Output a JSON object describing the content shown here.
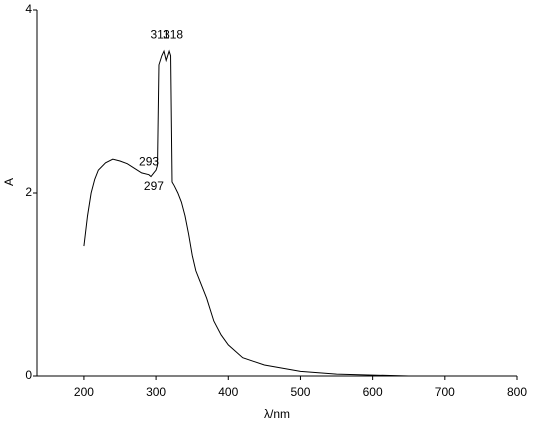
{
  "chart_data": {
    "type": "line",
    "x_label": "λ/nm",
    "y_label": "A",
    "x": [
      200,
      205,
      210,
      215,
      220,
      230,
      240,
      250,
      260,
      270,
      280,
      290,
      293,
      297,
      300,
      302,
      304,
      308,
      311,
      314,
      318,
      320,
      322,
      325,
      330,
      335,
      340,
      345,
      350,
      355,
      360,
      370,
      380,
      390,
      400,
      420,
      450,
      500,
      550,
      600,
      650
    ],
    "series": [
      {
        "name": "A",
        "color": "#000000",
        "values": [
          1.42,
          1.75,
          2.0,
          2.15,
          2.25,
          2.33,
          2.37,
          2.35,
          2.32,
          2.27,
          2.22,
          2.2,
          2.18,
          2.22,
          2.25,
          2.3,
          3.4,
          3.5,
          3.55,
          3.45,
          3.55,
          3.5,
          2.12,
          2.08,
          2.0,
          1.9,
          1.75,
          1.55,
          1.32,
          1.15,
          1.05,
          0.85,
          0.6,
          0.45,
          0.34,
          0.2,
          0.12,
          0.05,
          0.02,
          0.01,
          0.0
        ]
      }
    ],
    "annotations": [
      {
        "x": 311,
        "label": "311"
      },
      {
        "x": 318,
        "label": "318"
      },
      {
        "x": 293,
        "label": "293"
      },
      {
        "x": 297,
        "label": "297"
      }
    ],
    "xlim": [
      135,
      800
    ],
    "xticks": [
      200,
      300,
      400,
      500,
      600,
      700,
      800
    ],
    "ylim": [
      0,
      4
    ],
    "yticks": [
      0,
      2,
      4
    ],
    "grid": false
  }
}
